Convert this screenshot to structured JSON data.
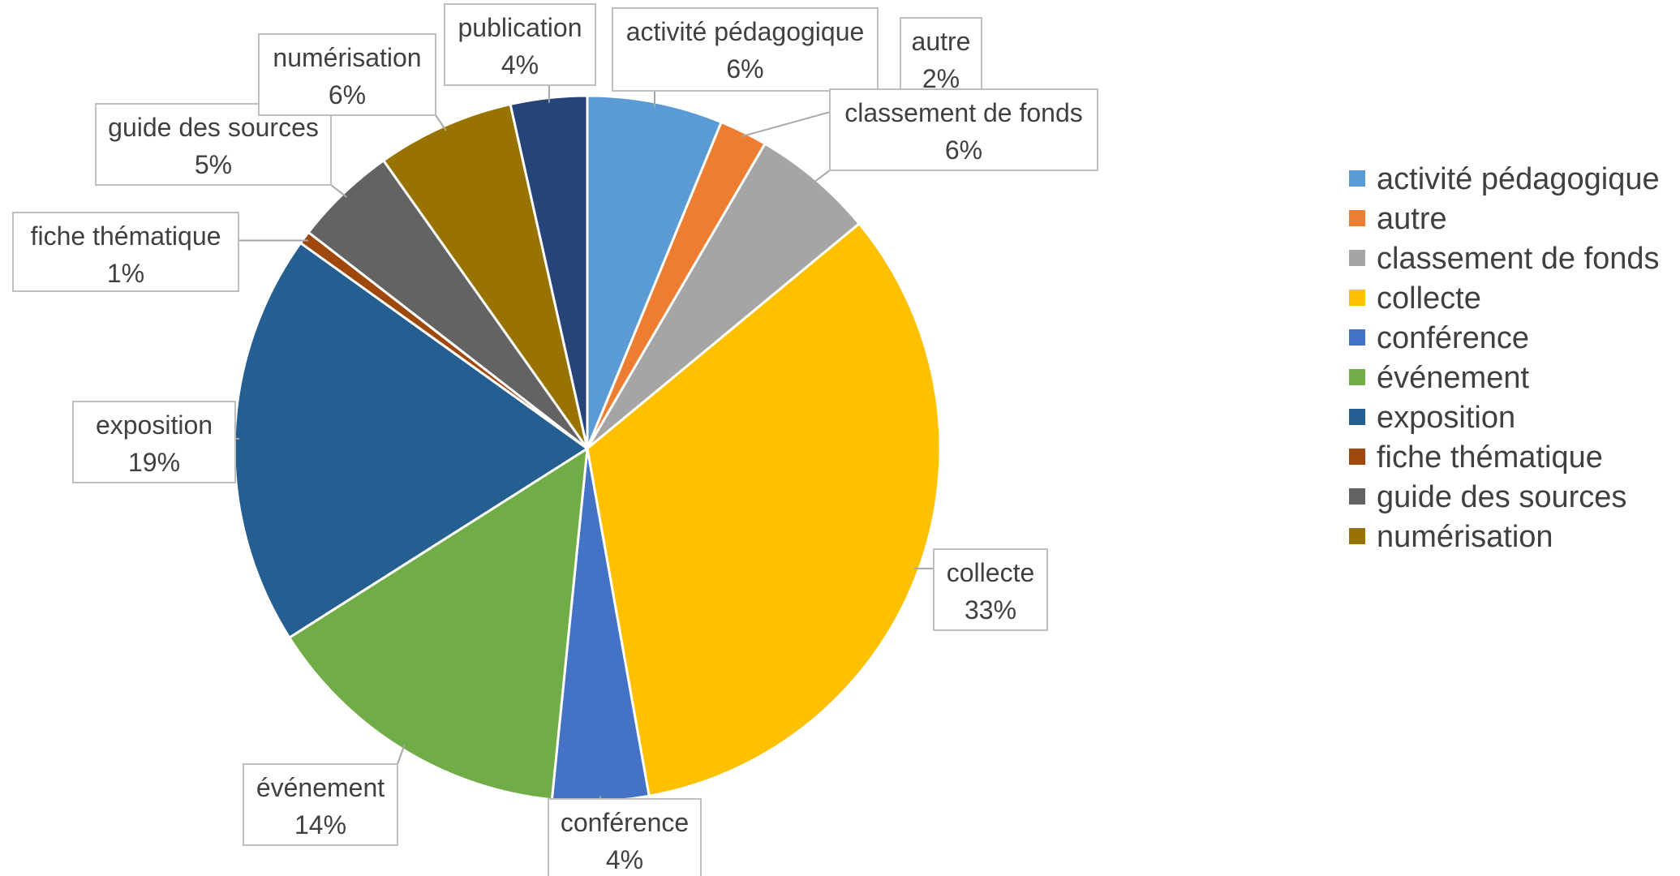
{
  "chart_data": {
    "type": "pie",
    "title": "",
    "legend_position": "right",
    "slices": [
      {
        "label": "activité pédagogique",
        "value": 6.2,
        "pct_label": "6%",
        "color": "#5B9BD5",
        "in_legend": true
      },
      {
        "label": "autre",
        "value": 2.2,
        "pct_label": "2%",
        "color": "#ED7D31",
        "in_legend": true
      },
      {
        "label": "classement de fonds",
        "value": 5.6,
        "pct_label": "6%",
        "color": "#A5A5A5",
        "in_legend": true
      },
      {
        "label": "collecte",
        "value": 33.2,
        "pct_label": "33%",
        "color": "#FFC000",
        "in_legend": true
      },
      {
        "label": "conférence",
        "value": 4.4,
        "pct_label": "4%",
        "color": "#4472C4",
        "in_legend": true
      },
      {
        "label": "événement",
        "value": 14.4,
        "pct_label": "14%",
        "color": "#70AD47",
        "in_legend": true
      },
      {
        "label": "exposition",
        "value": 18.9,
        "pct_label": "19%",
        "color": "#255E91",
        "in_legend": true
      },
      {
        "label": "fiche thématique",
        "value": 0.6,
        "pct_label": "1%",
        "color": "#9E480E",
        "in_legend": true
      },
      {
        "label": "guide des sources",
        "value": 4.7,
        "pct_label": "5%",
        "color": "#636363",
        "in_legend": true
      },
      {
        "label": "numérisation",
        "value": 6.3,
        "pct_label": "6%",
        "color": "#997300",
        "in_legend": true
      },
      {
        "label": "publication",
        "value": 3.5,
        "pct_label": "4%",
        "color": "#264478",
        "in_legend": false
      }
    ]
  }
}
